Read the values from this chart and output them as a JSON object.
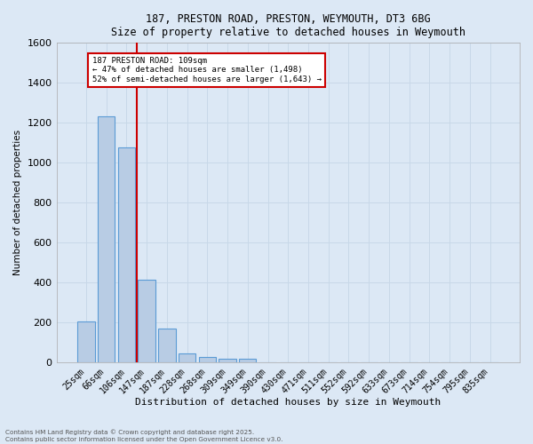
{
  "title_line1": "187, PRESTON ROAD, PRESTON, WEYMOUTH, DT3 6BG",
  "title_line2": "Size of property relative to detached houses in Weymouth",
  "xlabel": "Distribution of detached houses by size in Weymouth",
  "ylabel": "Number of detached properties",
  "bar_labels": [
    "25sqm",
    "66sqm",
    "106sqm",
    "147sqm",
    "187sqm",
    "228sqm",
    "268sqm",
    "309sqm",
    "349sqm",
    "390sqm",
    "430sqm",
    "471sqm",
    "511sqm",
    "552sqm",
    "592sqm",
    "633sqm",
    "673sqm",
    "714sqm",
    "754sqm",
    "795sqm",
    "835sqm"
  ],
  "bar_values": [
    205,
    1230,
    1075,
    415,
    170,
    45,
    25,
    15,
    15,
    0,
    0,
    0,
    0,
    0,
    0,
    0,
    0,
    0,
    0,
    0,
    0
  ],
  "bar_color": "#b8cce4",
  "bar_edge_color": "#5b9bd5",
  "red_line_x": 2.5,
  "annotation_text": "187 PRESTON ROAD: 109sqm\n← 47% of detached houses are smaller (1,498)\n52% of semi-detached houses are larger (1,643) →",
  "annotation_box_color": "#ffffff",
  "annotation_border_color": "#cc0000",
  "vline_color": "#cc0000",
  "ylim": [
    0,
    1600
  ],
  "yticks": [
    0,
    200,
    400,
    600,
    800,
    1000,
    1200,
    1400,
    1600
  ],
  "grid_color": "#c8d8e8",
  "background_color": "#dce8f5",
  "footer_line1": "Contains HM Land Registry data © Crown copyright and database right 2025.",
  "footer_line2": "Contains public sector information licensed under the Open Government Licence v3.0."
}
